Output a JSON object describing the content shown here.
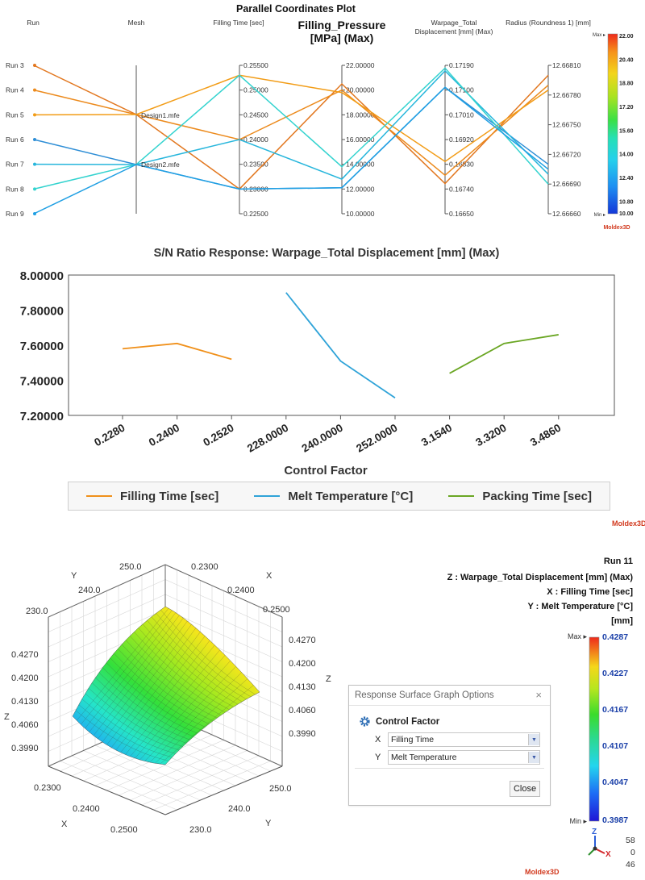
{
  "parallel": {
    "title": "Parallel Coordinates Plot",
    "axes": [
      {
        "label": "Run"
      },
      {
        "label": "Mesh"
      },
      {
        "label": "Filling Time [sec]",
        "ticks": [
          "0.25500",
          "0.25000",
          "0.24500",
          "0.24000",
          "0.23500",
          "0.23000",
          "0.22500"
        ]
      },
      {
        "label_lines": [
          "Filling_Pressure",
          "[MPa] (Max)"
        ],
        "ticks": [
          "22.00000",
          "20.00000",
          "18.00000",
          "16.00000",
          "14.00000",
          "12.00000",
          "10.00000"
        ]
      },
      {
        "label_lines": [
          "Warpage_Total",
          "Displacement [mm] (Max)"
        ],
        "ticks": [
          "0.17190",
          "0.17100",
          "0.17010",
          "0.16920",
          "0.16830",
          "0.16740",
          "0.16650"
        ]
      },
      {
        "label": "Radius (Roundness 1) [mm]",
        "ticks": [
          "12.66810",
          "12.66780",
          "12.66750",
          "12.66720",
          "12.66690",
          "12.66660"
        ]
      }
    ],
    "runs": [
      "Run 3",
      "Run 4",
      "Run 5",
      "Run 6",
      "Run 7",
      "Run 8",
      "Run 9"
    ],
    "mesh_labels": [
      "Design1.mfe",
      "Design2.mfe"
    ],
    "colorbar": {
      "max_label": "Max",
      "min_label": "Min",
      "ticks": [
        "22.00",
        "20.40",
        "18.80",
        "17.20",
        "15.60",
        "14.00",
        "12.40",
        "10.80",
        "10.00"
      ]
    }
  },
  "sn_chart": {
    "title": "S/N Ratio Response: Warpage_Total Displacement [mm] (Max)",
    "xlabel": "Control Factor",
    "yticks": [
      "8.00000",
      "7.80000",
      "7.60000",
      "7.40000",
      "7.20000"
    ]
  },
  "surface": {
    "x_ticks": [
      "0.2300",
      "0.2400",
      "0.2500"
    ],
    "y_ticks": [
      "230.0",
      "240.0",
      "250.0"
    ],
    "z_ticks": [
      "0.4270",
      "0.4200",
      "0.4130",
      "0.4060",
      "0.3990"
    ],
    "x_label": "X",
    "y_label": "Y",
    "z_label": "Z"
  },
  "info": {
    "run": "Run 11",
    "z": "Z : Warpage_Total Displacement [mm] (Max)",
    "x": "X : Filling Time [sec]",
    "y": "Y : Melt Temperature [°C]",
    "unit": "[mm]",
    "colorbar": {
      "max_label": "Max",
      "min_label": "Min",
      "ticks": [
        "0.4287",
        "0.4227",
        "0.4167",
        "0.4107",
        "0.4047",
        "0.3987"
      ]
    },
    "triad_numbers": [
      "58",
      "0",
      "46"
    ]
  },
  "dialog": {
    "title": "Response Surface Graph Options",
    "section": "Control Factor",
    "x_axis": "X",
    "x_value": "Filling Time",
    "y_axis": "Y",
    "y_value": "Melt Temperature",
    "close_label": "Close"
  },
  "brand": {
    "logo": "Moldex3D"
  },
  "colors": {
    "orange": "#f0901a",
    "blue": "#2fa3d8",
    "green": "#6aa623",
    "orange_dark": "#e2771f",
    "cyan": "#35d0d6"
  },
  "chart_data": [
    {
      "type": "line",
      "title": "Parallel Coordinates Plot",
      "note": "parallel coordinates",
      "dimensions": [
        "Run",
        "Mesh",
        "Filling Time [sec]",
        "Filling_Pressure [MPa] (Max)",
        "Warpage_Total Displacement [mm] (Max)",
        "Radius (Roundness 1) [mm]"
      ],
      "series": [
        {
          "name": "Run 3",
          "mesh": "Design1.mfe",
          "values": [
            0.23,
            20.5,
            0.1676,
            12.668
          ],
          "color": "#e2771f"
        },
        {
          "name": "Run 4",
          "mesh": "Design1.mfe",
          "values": [
            0.24,
            20.0,
            0.1679,
            12.6679
          ],
          "color": "#ec8a1c"
        },
        {
          "name": "Run 5",
          "mesh": "Design1.mfe",
          "values": [
            0.253,
            19.8,
            0.1684,
            12.66785
          ],
          "color": "#f29c16"
        },
        {
          "name": "Run 6",
          "mesh": "Design2.mfe",
          "values": [
            0.23,
            12.1,
            0.1711,
            12.6671
          ],
          "color": "#2e8ed6"
        },
        {
          "name": "Run 7",
          "mesh": "Design2.mfe",
          "values": [
            0.24,
            12.8,
            0.1717,
            12.667
          ],
          "color": "#27b6dc"
        },
        {
          "name": "Run 8",
          "mesh": "Design2.mfe",
          "values": [
            0.253,
            13.8,
            0.1718,
            12.6669
          ],
          "color": "#34d3cf"
        },
        {
          "name": "Run 9",
          "mesh": "Design2.mfe",
          "values": [
            0.23,
            12.1,
            0.1711,
            12.66705
          ],
          "color": "#1f9fe3"
        }
      ]
    },
    {
      "type": "line",
      "title": "S/N Ratio Response: Warpage_Total Displacement [mm] (Max)",
      "xlabel": "Control Factor",
      "ylabel": "",
      "categories": [
        "0.2280",
        "0.2400",
        "0.2520",
        "228.0000",
        "240.0000",
        "252.0000",
        "3.1540",
        "3.3200",
        "3.4860"
      ],
      "ylim": [
        7.2,
        8.0
      ],
      "series": [
        {
          "name": "Filling Time [sec]",
          "x": [
            "0.2280",
            "0.2400",
            "0.2520"
          ],
          "values": [
            7.58,
            7.61,
            7.52
          ],
          "color": "#f0901a"
        },
        {
          "name": "Melt Temperature [°C]",
          "x": [
            "228.0000",
            "240.0000",
            "252.0000"
          ],
          "values": [
            7.9,
            7.51,
            7.3
          ],
          "color": "#2fa3d8"
        },
        {
          "name": "Packing Time [sec]",
          "x": [
            "3.1540",
            "3.3200",
            "3.4860"
          ],
          "values": [
            7.44,
            7.61,
            7.66
          ],
          "color": "#6aa623"
        }
      ],
      "legend": "bottom",
      "grid": false
    },
    {
      "type": "area",
      "note": "3D response surface",
      "x": [
        0.23,
        0.24,
        0.25
      ],
      "y": [
        230.0,
        240.0,
        250.0
      ],
      "zlim": [
        0.3987,
        0.4287
      ],
      "z_range": [
        0.3987,
        0.4287
      ]
    }
  ]
}
